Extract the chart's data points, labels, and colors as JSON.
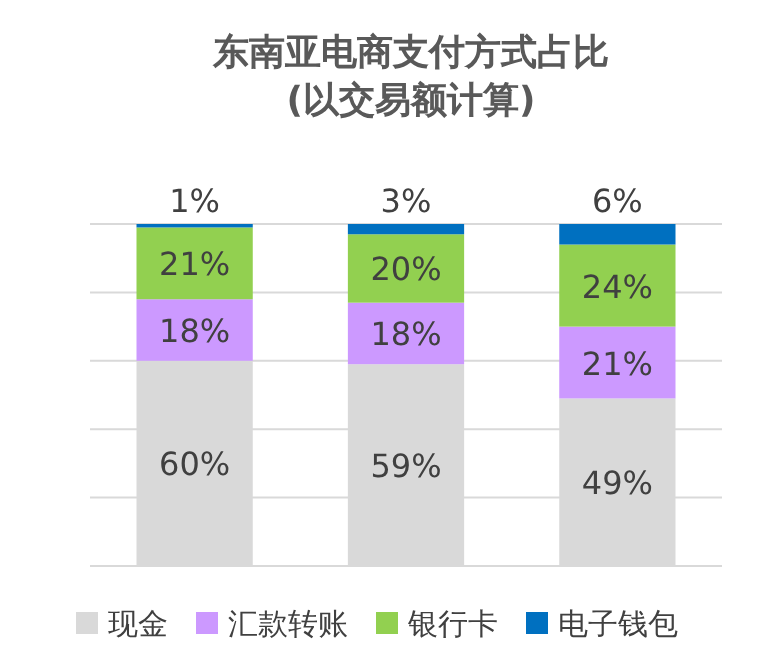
{
  "chart_data": {
    "type": "bar",
    "title": "东南亚电商支付方式占比\n(以交易额计算)",
    "categories": [
      null,
      null,
      null
    ],
    "stacked": true,
    "series": [
      {
        "name": "现金",
        "color": "#d9d9d9",
        "values": [
          60,
          59,
          49
        ],
        "value_labels": [
          "60%",
          "59%",
          "49%"
        ]
      },
      {
        "name": "汇款转账",
        "color": "#cc99ff",
        "values": [
          18,
          18,
          21
        ],
        "value_labels": [
          "18%",
          "18%",
          "21%"
        ]
      },
      {
        "name": "银行卡",
        "color": "#92d050",
        "values": [
          21,
          20,
          24
        ],
        "value_labels": [
          "21%",
          "20%",
          "24%"
        ]
      },
      {
        "name": "电子钱包",
        "color": "#0070c0",
        "values": [
          1,
          3,
          6
        ],
        "value_labels": [
          "1%",
          "3%",
          "6%"
        ]
      }
    ],
    "ylim": [
      0,
      100
    ],
    "yticks": [
      {
        "value": 0,
        "label": null
      },
      {
        "value": 20,
        "label": null
      },
      {
        "value": 40,
        "label": null
      },
      {
        "value": 60,
        "label": null
      },
      {
        "value": 80,
        "label": null
      },
      {
        "value": 100,
        "label": null
      }
    ],
    "grid": "y",
    "legend": "bottom"
  }
}
